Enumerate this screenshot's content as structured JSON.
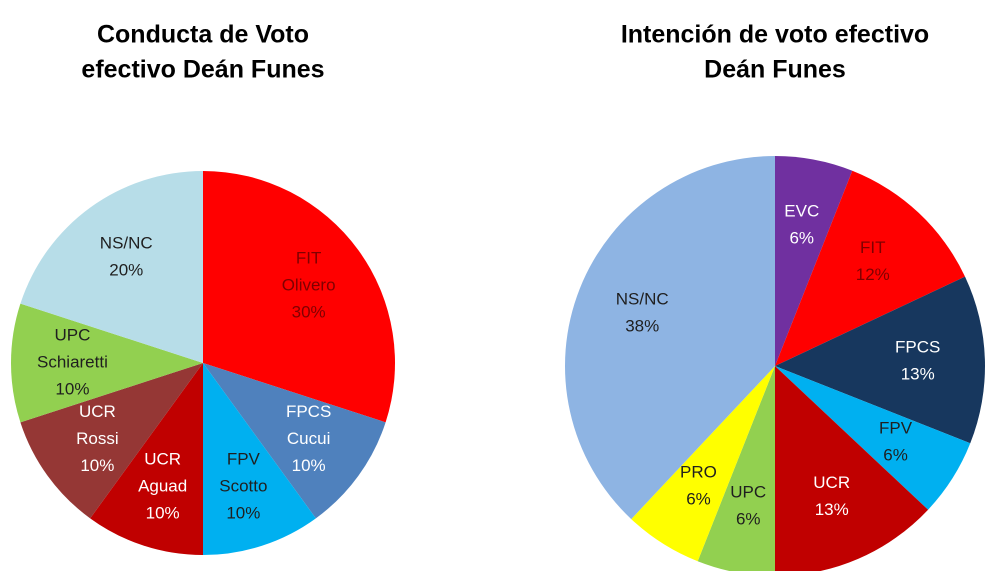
{
  "chart_data": [
    {
      "type": "pie",
      "title": [
        "Conducta de Voto",
        "efectivo Deán Funes"
      ],
      "categories": [
        [
          "FIT",
          "Olivero"
        ],
        [
          "FPCS",
          "Cucui"
        ],
        [
          "FPV",
          "Scotto"
        ],
        [
          "UCR",
          "Aguad"
        ],
        [
          "UCR",
          "Rossi"
        ],
        [
          "UPC",
          "Schiaretti"
        ],
        [
          "NS/NC"
        ]
      ],
      "values": [
        30,
        10,
        10,
        10,
        10,
        10,
        20
      ],
      "value_labels": [
        "30%",
        "10%",
        "10%",
        "10%",
        "10%",
        "10%",
        "20%"
      ],
      "colors": [
        "#ff0000",
        "#4f81bd",
        "#00b0f0",
        "#c00000",
        "#953735",
        "#92d050",
        "#b7dde8"
      ],
      "label_colors": [
        "#7f0000",
        "#ffffff",
        "#1f1f1f",
        "#ffffff",
        "#ffffff",
        "#1f1f1f",
        "#1f1f1f"
      ]
    },
    {
      "type": "pie",
      "title": [
        "Intención de voto efectivo",
        "Deán Funes"
      ],
      "categories": [
        [
          "EVC"
        ],
        [
          "FIT"
        ],
        [
          "FPCS"
        ],
        [
          "FPV"
        ],
        [
          "UCR"
        ],
        [
          "UPC"
        ],
        [
          "PRO"
        ],
        [
          "NS/NC"
        ]
      ],
      "values": [
        6,
        12,
        13,
        6,
        13,
        6,
        6,
        38
      ],
      "value_labels": [
        "6%",
        "12%",
        "13%",
        "6%",
        "13%",
        "6%",
        "6%",
        "38%"
      ],
      "colors": [
        "#7030a0",
        "#ff0000",
        "#17375e",
        "#00b0f0",
        "#c00000",
        "#92d050",
        "#ffff00",
        "#8eb4e3"
      ],
      "label_colors": [
        "#ffffff",
        "#7f0000",
        "#ffffff",
        "#1f1f1f",
        "#ffffff",
        "#1f1f1f",
        "#1f1f1f",
        "#1f1f1f"
      ]
    }
  ]
}
